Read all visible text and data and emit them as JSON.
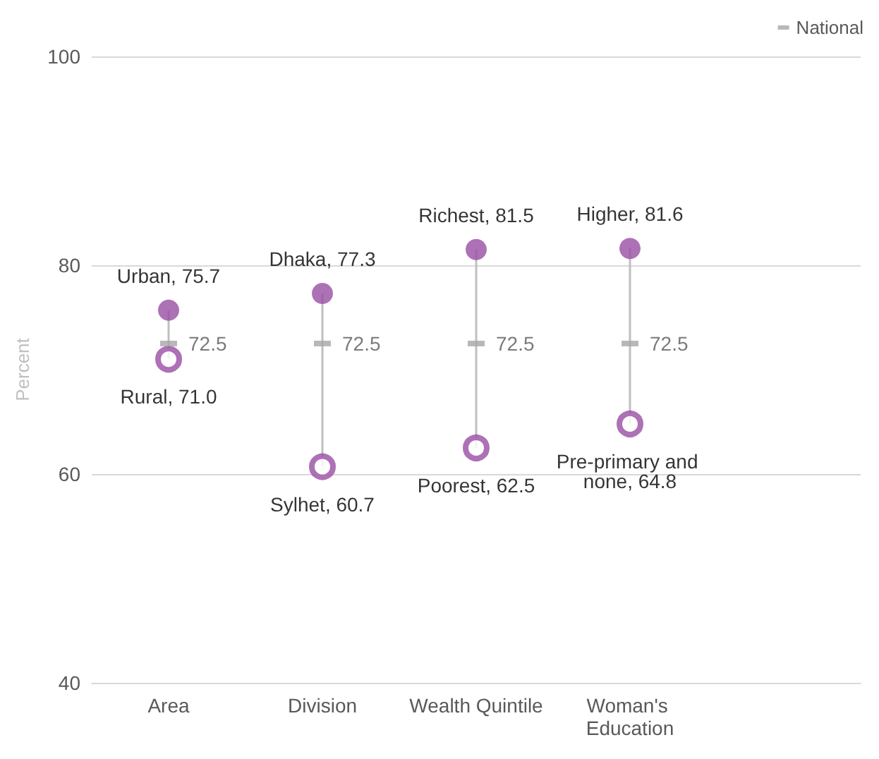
{
  "chart_data": {
    "type": "scatter",
    "ylabel": "Percent",
    "categories": [
      "Area",
      "Division",
      "Wealth Quintile",
      "Woman's Education",
      null
    ],
    "series": [
      {
        "color": "#984ea3",
        "marker": "circle",
        "values": [
          75.7,
          77.3,
          81.5,
          81.6,
          null
        ],
        "value_labels": [
          "Urban, 75.7",
          "Dhaka, 77.3",
          "Richest, 81.5",
          "Higher, 81.6",
          null
        ]
      },
      {
        "color": "#984ea3",
        "marker": "circle",
        "values": [
          71.0,
          60.7,
          62.5,
          64.8,
          null
        ],
        "value_labels": [
          "Rural, 71.0",
          "Sylhet, 60.7",
          "Poorest, 62.5",
          "Pre-primary and none, 64.8",
          null
        ]
      },
      {
        "name": "National",
        "color": "#a6a6a6",
        "marker": "square",
        "values": [
          72.5,
          72.5,
          72.5,
          72.5,
          null
        ],
        "value_labels": [
          "72.5",
          "72.5",
          "72.5",
          "72.5",
          null
        ]
      }
    ],
    "ylim": [
      40,
      100
    ],
    "yticks": [
      40,
      60,
      80,
      100
    ],
    "grid": "y",
    "legend": "top right"
  }
}
